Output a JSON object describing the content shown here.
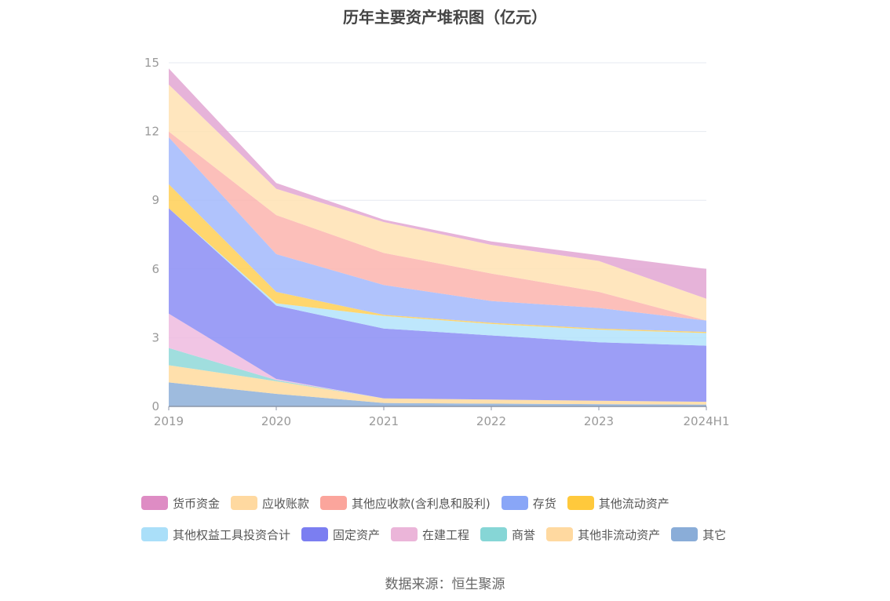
{
  "chart_data": {
    "type": "area",
    "stacked": true,
    "title": "历年主要资产堆积图（亿元）",
    "x": [
      "2019",
      "2020",
      "2021",
      "2022",
      "2023",
      "2024H1"
    ],
    "yticks": [
      0,
      3,
      6,
      9,
      12,
      15
    ],
    "ylim": [
      0,
      15
    ],
    "grid": true,
    "legend_position": "bottom",
    "series": [
      {
        "name": "其它",
        "color": "#8dafd8",
        "values": [
          1.05,
          0.55,
          0.15,
          0.12,
          0.1,
          0.08
        ]
      },
      {
        "name": "其他非流动资产",
        "color": "#ffdb9e",
        "values": [
          0.75,
          0.55,
          0.2,
          0.18,
          0.15,
          0.12
        ]
      },
      {
        "name": "商誉",
        "color": "#8fd8d8",
        "values": [
          0.75,
          0.05,
          0.0,
          0.0,
          0.0,
          0.0
        ]
      },
      {
        "name": "在建工程",
        "color": "#eebbdf",
        "values": [
          1.5,
          0.05,
          0.0,
          0.0,
          0.0,
          0.0
        ]
      },
      {
        "name": "固定资产",
        "color": "#8b8df4",
        "values": [
          4.6,
          3.2,
          3.05,
          2.8,
          2.55,
          2.45
        ]
      },
      {
        "name": "其他权益工具投资合计",
        "color": "#b3e3fb",
        "values": [
          0.0,
          0.1,
          0.55,
          0.5,
          0.55,
          0.55
        ]
      },
      {
        "name": "其他流动资产",
        "color": "#ffcf55",
        "values": [
          1.05,
          0.5,
          0.05,
          0.05,
          0.05,
          0.05
        ]
      },
      {
        "name": "存货",
        "color": "#a2b8fb",
        "values": [
          2.05,
          1.65,
          1.3,
          0.95,
          0.9,
          0.5
        ]
      },
      {
        "name": "其他应收款(含利息和股利)",
        "color": "#fbb4ae",
        "values": [
          0.25,
          1.7,
          1.4,
          1.2,
          0.7,
          0.0
        ]
      },
      {
        "name": "应收账款",
        "color": "#ffe2b3",
        "values": [
          2.05,
          1.15,
          1.35,
          1.25,
          1.35,
          0.95
        ]
      },
      {
        "name": "货币资金",
        "color": "#e2a6d2",
        "values": [
          0.7,
          0.25,
          0.1,
          0.15,
          0.25,
          1.3
        ]
      }
    ]
  },
  "legend_rows": [
    [
      {
        "name": "货币资金",
        "color": "#de8cc4"
      },
      {
        "name": "应收账款",
        "color": "#ffd9a0"
      },
      {
        "name": "其他应收款(含利息和股利)",
        "color": "#fba59c"
      },
      {
        "name": "存货",
        "color": "#89a6f7"
      },
      {
        "name": "其他流动资产",
        "color": "#ffc93c"
      }
    ],
    [
      {
        "name": "其他权益工具投资合计",
        "color": "#aadff9"
      },
      {
        "name": "固定资产",
        "color": "#7b7ef1"
      },
      {
        "name": "在建工程",
        "color": "#ebb5d9"
      },
      {
        "name": "商誉",
        "color": "#86d6d6"
      },
      {
        "name": "其他非流动资产",
        "color": "#ffd9a0"
      },
      {
        "name": "其它",
        "color": "#8aadd8"
      }
    ]
  ],
  "source": "数据来源：恒生聚源"
}
